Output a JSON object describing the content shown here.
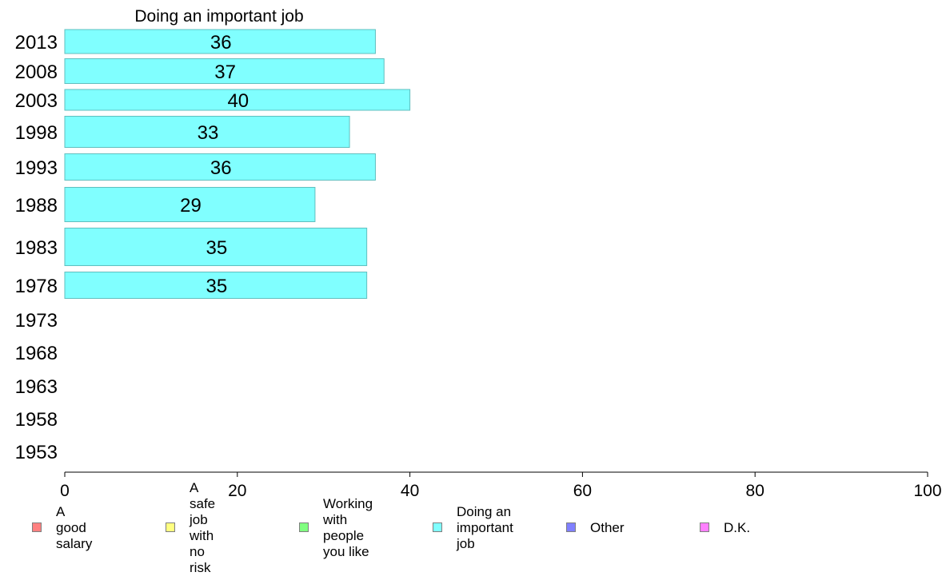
{
  "chart_data": {
    "type": "bar",
    "orientation": "horizontal",
    "title": "Doing an important job",
    "categories": [
      "2013",
      "2008",
      "2003",
      "1998",
      "1993",
      "1988",
      "1983",
      "1978",
      "1973",
      "1968",
      "1963",
      "1958",
      "1953"
    ],
    "values": [
      36,
      37,
      40,
      33,
      36,
      29,
      35,
      35,
      null,
      null,
      null,
      null,
      null
    ],
    "value_labels": [
      "36",
      "37",
      "40",
      "33",
      "36",
      "29",
      "35",
      "35",
      "",
      "",
      "",
      "",
      ""
    ],
    "xlim": [
      0,
      100
    ],
    "x_ticks": [
      "0",
      "20",
      "40",
      "60",
      "80",
      "100"
    ],
    "bar_color": "#80ffff",
    "bar_border": "#5fbfbf",
    "grid": false,
    "legend_position": "bottom",
    "legend": [
      {
        "label": "A good salary",
        "color": "#ff8080"
      },
      {
        "label": "A safe job\nwith no risk",
        "color": "#ffff80"
      },
      {
        "label": "Working with\npeople you like",
        "color": "#80ff80"
      },
      {
        "label": "Doing an\nimportant job",
        "color": "#80ffff"
      },
      {
        "label": "Other",
        "color": "#8080ff"
      },
      {
        "label": "D.K.",
        "color": "#ff80ff"
      }
    ]
  }
}
